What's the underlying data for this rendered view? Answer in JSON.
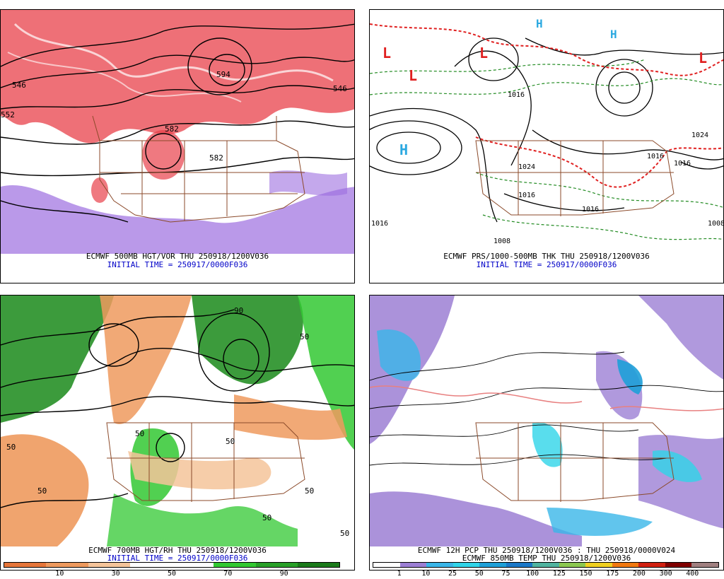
{
  "panels": [
    {
      "id": "tl",
      "caption": "ECMWF 500MB HGT/VOR THU 250918/1200V036",
      "initial": "INITIAL TIME = 250917/0000F036",
      "labels": [
        "546",
        "582",
        "582",
        "594",
        "546",
        "552"
      ]
    },
    {
      "id": "tr",
      "caption": "ECMWF PRS/1000-500MB THK THU 250918/1200V036",
      "initial": "INITIAL TIME = 250917/0000F036",
      "labels": [
        "1016",
        "1016",
        "1024",
        "1016",
        "1008",
        "1016",
        "1016",
        "1024",
        "1008",
        "1016"
      ],
      "centers": [
        "L",
        "L",
        "L",
        "L",
        "H",
        "H",
        "H"
      ]
    },
    {
      "id": "bl",
      "caption": "ECMWF 700MB HGT/RH THU 250918/1200V036",
      "initial": "INITIAL TIME = 250917/0000F036",
      "labels": [
        "50",
        "50",
        "50",
        "50",
        "50",
        "50",
        "50",
        "50",
        "90"
      ],
      "legend": {
        "ticks": [
          "10",
          "30",
          "50",
          "70",
          "90"
        ],
        "colors": [
          "#e6763a",
          "#ee9a5e",
          "#f5c49a",
          "#ffffff",
          "#ffffff",
          "#32c832",
          "#28a028",
          "#1a7a1a"
        ]
      }
    },
    {
      "id": "br",
      "caption": "ECMWF 12H PCP THU 250918/1200V036 : THU 250918/0000V024",
      "initial": "ECMWF 850MB TEMP THU 250918/1200V036",
      "legend": {
        "ticks": [
          "1",
          "10",
          "25",
          "50",
          "75",
          "100",
          "125",
          "150",
          "175",
          "200",
          "300",
          "400"
        ],
        "colors": [
          "#ffffff",
          "#9c7fd4",
          "#3ab6e8",
          "#30d4e8",
          "#1ea0d8",
          "#1a78c8",
          "#50b4a0",
          "#8cc850",
          "#f0d020",
          "#f07810",
          "#d02010",
          "#800000",
          "#a08080"
        ]
      }
    }
  ]
}
